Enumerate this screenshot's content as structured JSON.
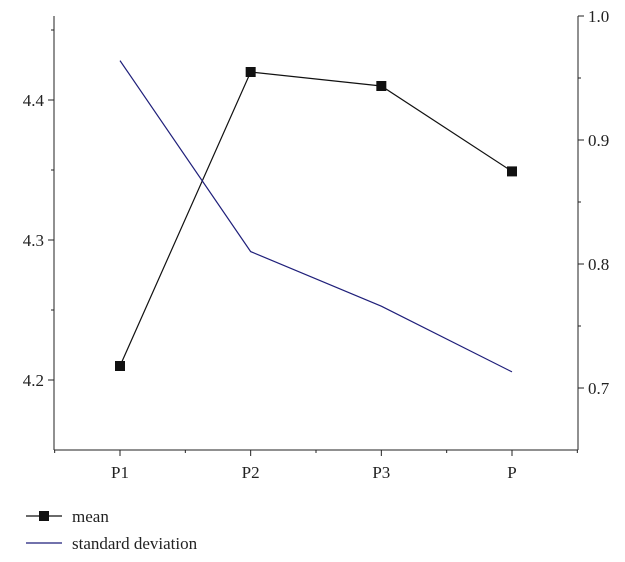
{
  "chart_data": {
    "type": "line",
    "title": "",
    "xlabel": "",
    "ylabel": "",
    "y2label": "",
    "categories": [
      "P1",
      "P2",
      "P3",
      "P"
    ],
    "series": [
      {
        "name": "mean",
        "axis": "left",
        "values": [
          4.21,
          4.42,
          4.41,
          4.349
        ],
        "color": "#111111",
        "marker": "square"
      },
      {
        "name": "standard deviation",
        "axis": "right",
        "values": [
          0.964,
          0.81,
          0.766,
          0.713
        ],
        "color": "#1f1f7a",
        "marker": "none"
      }
    ],
    "left_axis": {
      "ylim": [
        4.15,
        4.46
      ],
      "ticks": [
        "4.2",
        "4.3",
        "4.4"
      ]
    },
    "right_axis": {
      "ylim": [
        0.65,
        1.0
      ],
      "ticks": [
        "0.7",
        "0.8",
        "0.9",
        "1.0"
      ]
    },
    "grid": false,
    "legend": {
      "position": "bottom-left"
    }
  }
}
